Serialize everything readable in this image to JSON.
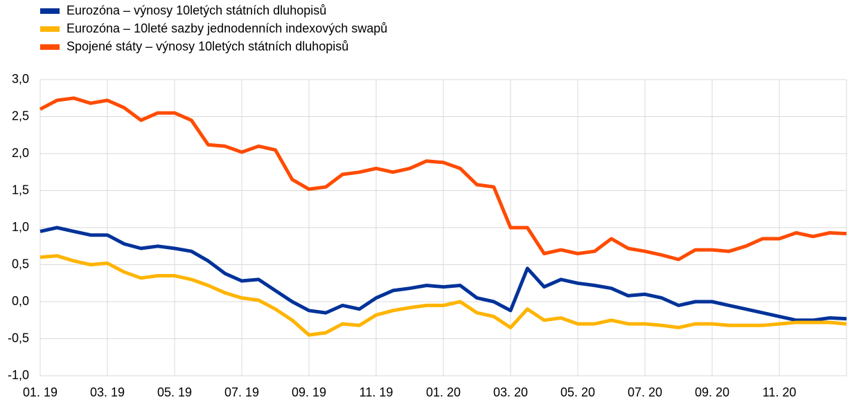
{
  "chart_data": {
    "type": "line",
    "x": [
      0,
      0.5,
      1,
      1.5,
      2,
      2.5,
      3,
      3.5,
      4,
      4.5,
      5,
      5.5,
      6,
      6.5,
      7,
      7.5,
      8,
      8.5,
      9,
      9.5,
      10,
      10.5,
      11,
      11.5,
      12,
      12.5,
      13,
      13.5,
      14,
      14.5,
      15,
      15.5,
      16,
      16.5,
      17,
      17.5,
      18,
      18.5,
      19,
      19.5,
      20,
      20.5,
      21,
      21.5,
      22,
      22.5,
      23,
      23.5,
      24
    ],
    "series": [
      {
        "name": "Eurozóna – výnosy 10letých státních dluhopisů",
        "color": "#003299",
        "values": [
          0.95,
          1.0,
          0.95,
          0.9,
          0.9,
          0.78,
          0.72,
          0.75,
          0.72,
          0.68,
          0.55,
          0.38,
          0.28,
          0.3,
          0.15,
          0.0,
          -0.12,
          -0.15,
          -0.05,
          -0.1,
          0.05,
          0.15,
          0.18,
          0.22,
          0.2,
          0.22,
          0.05,
          0.0,
          -0.12,
          0.45,
          0.2,
          0.3,
          0.25,
          0.22,
          0.18,
          0.08,
          0.1,
          0.05,
          -0.05,
          0.0,
          0.0,
          -0.05,
          -0.1,
          -0.15,
          -0.2,
          -0.25,
          -0.25,
          -0.22,
          -0.23
        ]
      },
      {
        "name": "Eurozóna – 10leté sazby jednodenních indexových swapů",
        "color": "#ffb400",
        "values": [
          0.6,
          0.62,
          0.55,
          0.5,
          0.52,
          0.4,
          0.32,
          0.35,
          0.35,
          0.3,
          0.22,
          0.12,
          0.05,
          0.02,
          -0.1,
          -0.25,
          -0.45,
          -0.42,
          -0.3,
          -0.32,
          -0.18,
          -0.12,
          -0.08,
          -0.05,
          -0.05,
          0.0,
          -0.15,
          -0.2,
          -0.35,
          -0.1,
          -0.25,
          -0.22,
          -0.3,
          -0.3,
          -0.25,
          -0.3,
          -0.3,
          -0.32,
          -0.35,
          -0.3,
          -0.3,
          -0.32,
          -0.32,
          -0.32,
          -0.3,
          -0.28,
          -0.28,
          -0.28,
          -0.3
        ]
      },
      {
        "name": "Spojené státy – výnosy 10letých státních dluhopisů",
        "color": "#ff4b00",
        "values": [
          2.6,
          2.72,
          2.75,
          2.68,
          2.72,
          2.62,
          2.45,
          2.55,
          2.55,
          2.45,
          2.12,
          2.1,
          2.02,
          2.1,
          2.05,
          1.65,
          1.52,
          1.55,
          1.72,
          1.75,
          1.8,
          1.75,
          1.8,
          1.9,
          1.88,
          1.8,
          1.58,
          1.55,
          1.0,
          1.0,
          0.65,
          0.7,
          0.65,
          0.68,
          0.85,
          0.72,
          0.68,
          0.63,
          0.57,
          0.7,
          0.7,
          0.68,
          0.75,
          0.85,
          0.85,
          0.93,
          0.88,
          0.93,
          0.92
        ]
      }
    ],
    "xlim": [
      0,
      24
    ],
    "xticks": [
      {
        "value": 0,
        "label": "01. 19"
      },
      {
        "value": 2,
        "label": "03. 19"
      },
      {
        "value": 4,
        "label": "05. 19"
      },
      {
        "value": 6,
        "label": "07. 19"
      },
      {
        "value": 8,
        "label": "09. 19"
      },
      {
        "value": 10,
        "label": "11. 19"
      },
      {
        "value": 12,
        "label": "01. 20"
      },
      {
        "value": 14,
        "label": "03. 20"
      },
      {
        "value": 16,
        "label": "05. 20"
      },
      {
        "value": 18,
        "label": "07. 20"
      },
      {
        "value": 20,
        "label": "09. 20"
      },
      {
        "value": 22,
        "label": "11. 20"
      }
    ],
    "ylim": [
      -1,
      3
    ],
    "yticks": [
      {
        "value": -1,
        "label": "-1,0"
      },
      {
        "value": -0.5,
        "label": "-0,5"
      },
      {
        "value": 0,
        "label": "0,0"
      },
      {
        "value": 0.5,
        "label": "0,5"
      },
      {
        "value": 1,
        "label": "1,0"
      },
      {
        "value": 1.5,
        "label": "1,5"
      },
      {
        "value": 2,
        "label": "2,0"
      },
      {
        "value": 2.5,
        "label": "2,5"
      },
      {
        "value": 3,
        "label": "3,0"
      }
    ],
    "grid": true,
    "legend": "top-left"
  }
}
